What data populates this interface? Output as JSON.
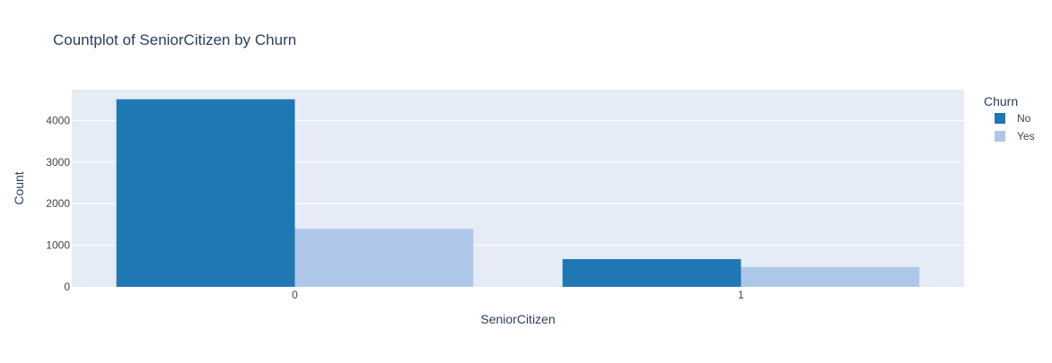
{
  "chart_data": {
    "type": "bar",
    "title": "Countplot of SeniorCitizen by Churn",
    "xlabel": "SeniorCitizen",
    "ylabel": "Count",
    "categories": [
      "0",
      "1"
    ],
    "ylim": [
      0,
      4740
    ],
    "yticks": [
      0,
      1000,
      2000,
      3000,
      4000
    ],
    "grid": true,
    "barmode": "group",
    "legend": {
      "title": "Churn",
      "placement": "right-top"
    },
    "series": [
      {
        "name": "No",
        "color": "#1f77b4",
        "values": [
          4508,
          666
        ]
      },
      {
        "name": "Yes",
        "color": "#aec7e8",
        "values": [
          1393,
          476
        ]
      }
    ]
  },
  "colors": {
    "plot_background": "#e5ecf6",
    "gridline": "#ffffff",
    "text": "#2a3f5f",
    "tick_text": "#444444"
  }
}
